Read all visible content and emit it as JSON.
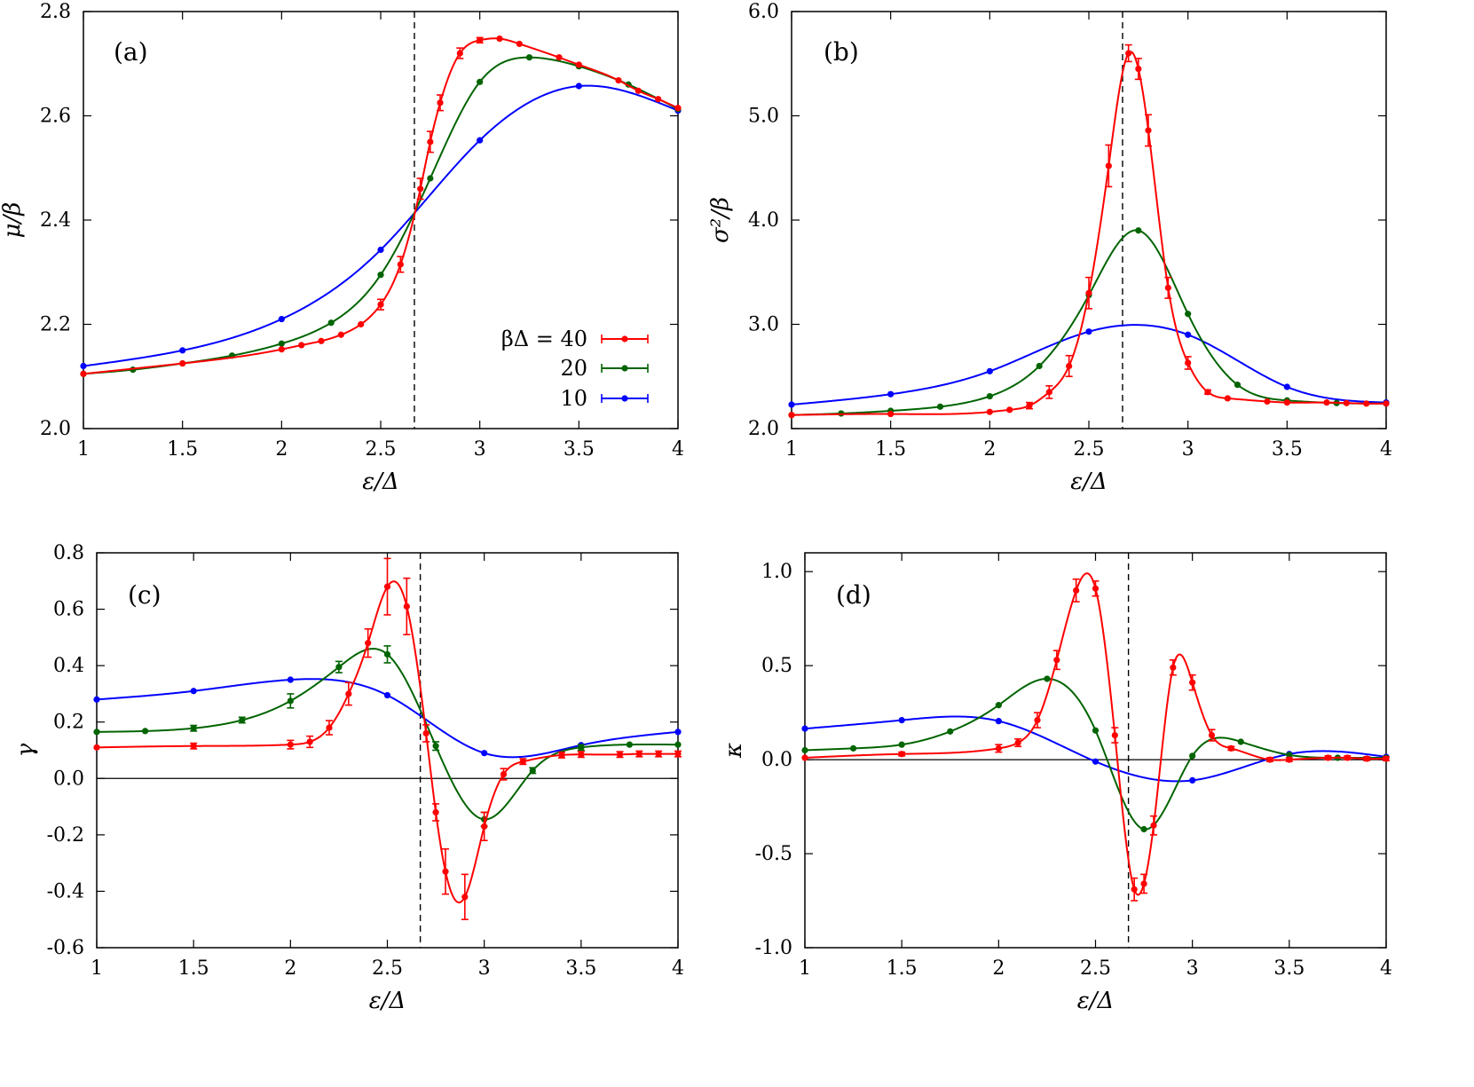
{
  "colors": {
    "beta40": "#ff0000",
    "beta20": "#006400",
    "beta10": "#0000ff",
    "axis": "#000000",
    "reference": "#000000"
  },
  "legend": {
    "entries": [
      {
        "key": "b40",
        "label": "βΔ = 40"
      },
      {
        "key": "b20",
        "label": "20"
      },
      {
        "key": "b10",
        "label": "10"
      }
    ]
  },
  "chart_data": [
    {
      "type": "line",
      "panel": "(a)",
      "xlabel": "ε/Δ",
      "ylabel": "μ/β",
      "xlim": [
        1,
        4
      ],
      "ylim": [
        2.0,
        2.8
      ],
      "xticks": [
        "1",
        "1.5",
        "2",
        "2.5",
        "3",
        "3.5",
        "4"
      ],
      "yticks": [
        "2.0",
        "2.2",
        "2.4",
        "2.6",
        "2.8"
      ],
      "vline": 2.67,
      "hline": null,
      "series": [
        {
          "key": "b40",
          "x": [
            1,
            1.5,
            2,
            2.1,
            2.2,
            2.3,
            2.4,
            2.5,
            2.6,
            2.7,
            2.75,
            2.8,
            2.9,
            3.0,
            3.1,
            3.2,
            3.4,
            3.5,
            3.7,
            3.8,
            3.9,
            4.0
          ],
          "y": [
            2.105,
            2.125,
            2.152,
            2.16,
            2.168,
            2.18,
            2.2,
            2.238,
            2.315,
            2.46,
            2.55,
            2.625,
            2.72,
            2.745,
            2.748,
            2.738,
            2.712,
            2.698,
            2.668,
            2.648,
            2.632,
            2.615
          ],
          "err": [
            0,
            0,
            0,
            0,
            0,
            0,
            0,
            0.01,
            0.015,
            0.02,
            0.02,
            0.015,
            0.01,
            0.005,
            0,
            0,
            0,
            0,
            0,
            0,
            0,
            0
          ]
        },
        {
          "key": "b20",
          "x": [
            1,
            1.25,
            1.5,
            1.75,
            2,
            2.25,
            2.5,
            2.75,
            3.0,
            3.25,
            3.5,
            3.75,
            4.0
          ],
          "y": [
            2.105,
            2.113,
            2.125,
            2.14,
            2.163,
            2.203,
            2.295,
            2.48,
            2.665,
            2.712,
            2.695,
            2.66,
            2.613
          ],
          "err": [
            0,
            0,
            0,
            0,
            0,
            0,
            0,
            0,
            0,
            0,
            0,
            0,
            0
          ]
        },
        {
          "key": "b10",
          "x": [
            1,
            1.5,
            2,
            2.5,
            3.0,
            3.5,
            4.0
          ],
          "y": [
            2.12,
            2.15,
            2.21,
            2.343,
            2.553,
            2.657,
            2.61
          ],
          "err": [
            0,
            0,
            0,
            0,
            0,
            0,
            0
          ]
        }
      ]
    },
    {
      "type": "line",
      "panel": "(b)",
      "xlabel": "ε/Δ",
      "ylabel": "σ²/β",
      "xlim": [
        1,
        4
      ],
      "ylim": [
        2.0,
        6.0
      ],
      "xticks": [
        "1",
        "1.5",
        "2",
        "2.5",
        "3",
        "3.5",
        "4"
      ],
      "yticks": [
        "2.0",
        "3.0",
        "4.0",
        "5.0",
        "6.0"
      ],
      "vline": 2.67,
      "hline": null,
      "series": [
        {
          "key": "b40",
          "x": [
            1,
            1.5,
            2,
            2.1,
            2.2,
            2.3,
            2.4,
            2.5,
            2.6,
            2.7,
            2.75,
            2.8,
            2.9,
            3.0,
            3.1,
            3.2,
            3.4,
            3.5,
            3.7,
            3.8,
            3.9,
            4.0
          ],
          "y": [
            2.13,
            2.14,
            2.16,
            2.18,
            2.22,
            2.35,
            2.6,
            3.3,
            4.52,
            5.6,
            5.45,
            4.86,
            3.35,
            2.63,
            2.35,
            2.29,
            2.26,
            2.25,
            2.25,
            2.245,
            2.24,
            2.24
          ],
          "err": [
            0,
            0,
            0,
            0,
            0.03,
            0.06,
            0.1,
            0.15,
            0.2,
            0.08,
            0.1,
            0.15,
            0.1,
            0.06,
            0.02,
            0,
            0,
            0,
            0,
            0,
            0,
            0
          ]
        },
        {
          "key": "b20",
          "x": [
            1,
            1.25,
            1.5,
            1.75,
            2,
            2.25,
            2.5,
            2.75,
            3.0,
            3.25,
            3.5,
            3.75,
            4.0
          ],
          "y": [
            2.13,
            2.145,
            2.17,
            2.21,
            2.31,
            2.6,
            3.28,
            3.9,
            3.1,
            2.42,
            2.27,
            2.245,
            2.24
          ],
          "err": [
            0,
            0,
            0,
            0,
            0,
            0,
            0,
            0,
            0,
            0,
            0,
            0,
            0
          ]
        },
        {
          "key": "b10",
          "x": [
            1,
            1.5,
            2,
            2.5,
            3.0,
            3.5,
            4.0
          ],
          "y": [
            2.23,
            2.33,
            2.55,
            2.93,
            2.9,
            2.4,
            2.25
          ],
          "err": [
            0,
            0,
            0,
            0,
            0,
            0,
            0
          ]
        }
      ]
    },
    {
      "type": "line",
      "panel": "(c)",
      "xlabel": "ε/Δ",
      "ylabel": "γ",
      "xlim": [
        1,
        4
      ],
      "ylim": [
        -0.6,
        0.8
      ],
      "xticks": [
        "1",
        "1.5",
        "2",
        "2.5",
        "3",
        "3.5",
        "4"
      ],
      "yticks": [
        "-0.6",
        "-0.4",
        "-0.2",
        "0.0",
        "0.2",
        "0.4",
        "0.6",
        "0.8"
      ],
      "vline": 2.67,
      "hline": 0,
      "series": [
        {
          "key": "b40",
          "x": [
            1,
            1.5,
            2,
            2.1,
            2.2,
            2.3,
            2.4,
            2.5,
            2.6,
            2.7,
            2.75,
            2.8,
            2.9,
            3.0,
            3.1,
            3.2,
            3.4,
            3.5,
            3.7,
            3.8,
            3.9,
            4.0
          ],
          "y": [
            0.11,
            0.115,
            0.12,
            0.13,
            0.18,
            0.3,
            0.48,
            0.68,
            0.61,
            0.16,
            -0.12,
            -0.33,
            -0.42,
            -0.17,
            0.015,
            0.06,
            0.083,
            0.085,
            0.085,
            0.087,
            0.087,
            0.087
          ],
          "err": [
            0,
            0.01,
            0.015,
            0.02,
            0.025,
            0.04,
            0.05,
            0.1,
            0.1,
            0.03,
            0.03,
            0.08,
            0.08,
            0.05,
            0.02,
            0.01,
            0.01,
            0.01,
            0.01,
            0.01,
            0.01,
            0.01
          ]
        },
        {
          "key": "b20",
          "x": [
            1,
            1.25,
            1.5,
            1.75,
            2,
            2.25,
            2.5,
            2.75,
            3.0,
            3.25,
            3.5,
            3.75,
            4.0
          ],
          "y": [
            0.165,
            0.168,
            0.178,
            0.207,
            0.275,
            0.395,
            0.44,
            0.115,
            -0.145,
            0.028,
            0.11,
            0.12,
            0.12
          ],
          "err": [
            0,
            0,
            0.01,
            0.01,
            0.025,
            0.02,
            0.03,
            0.015,
            0.025,
            0.01,
            0.01,
            0,
            0
          ]
        },
        {
          "key": "b10",
          "x": [
            1,
            1.5,
            2,
            2.5,
            3.0,
            3.5,
            4.0
          ],
          "y": [
            0.28,
            0.31,
            0.35,
            0.295,
            0.09,
            0.118,
            0.165
          ],
          "err": [
            0,
            0,
            0,
            0,
            0,
            0,
            0
          ]
        }
      ]
    },
    {
      "type": "line",
      "panel": "(d)",
      "xlabel": "ε/Δ",
      "ylabel": "κ",
      "xlim": [
        1,
        4
      ],
      "ylim": [
        -1.0,
        1.1
      ],
      "xticks": [
        "1",
        "1.5",
        "2",
        "2.5",
        "3",
        "3.5",
        "4"
      ],
      "yticks": [
        "-1.0",
        "-0.5",
        "0.0",
        "0.5",
        "1.0"
      ],
      "vline": 2.67,
      "hline": 0,
      "series": [
        {
          "key": "b40",
          "x": [
            1,
            1.5,
            2,
            2.1,
            2.2,
            2.3,
            2.4,
            2.5,
            2.6,
            2.7,
            2.75,
            2.8,
            2.9,
            3.0,
            3.1,
            3.2,
            3.4,
            3.5,
            3.7,
            3.8,
            3.9,
            4.0
          ],
          "y": [
            0.01,
            0.03,
            0.06,
            0.09,
            0.21,
            0.53,
            0.9,
            0.91,
            0.13,
            -0.69,
            -0.66,
            -0.35,
            0.49,
            0.41,
            0.13,
            0.06,
            0.0,
            0.0,
            0.01,
            0.01,
            0.005,
            0.005
          ],
          "err": [
            0,
            0.01,
            0.02,
            0.02,
            0.04,
            0.05,
            0.06,
            0.04,
            0.04,
            0.06,
            0.05,
            0.05,
            0.04,
            0.04,
            0.03,
            0.01,
            0.01,
            0.01,
            0.01,
            0.01,
            0.01,
            0.01
          ]
        },
        {
          "key": "b20",
          "x": [
            1,
            1.25,
            1.5,
            1.75,
            2,
            2.25,
            2.5,
            2.75,
            3.0,
            3.25,
            3.5,
            3.75,
            4.0
          ],
          "y": [
            0.05,
            0.06,
            0.08,
            0.15,
            0.29,
            0.43,
            0.155,
            -0.37,
            0.02,
            0.095,
            0.025,
            0.01,
            0.01
          ],
          "err": [
            0,
            0,
            0,
            0,
            0,
            0,
            0,
            0,
            0,
            0,
            0,
            0,
            0
          ]
        },
        {
          "key": "b10",
          "x": [
            1,
            1.5,
            2,
            2.5,
            3.0,
            3.5,
            4.0
          ],
          "y": [
            0.165,
            0.21,
            0.205,
            -0.01,
            -0.11,
            0.03,
            0.015
          ],
          "err": [
            0,
            0,
            0,
            0,
            0,
            0,
            0
          ]
        }
      ]
    }
  ]
}
